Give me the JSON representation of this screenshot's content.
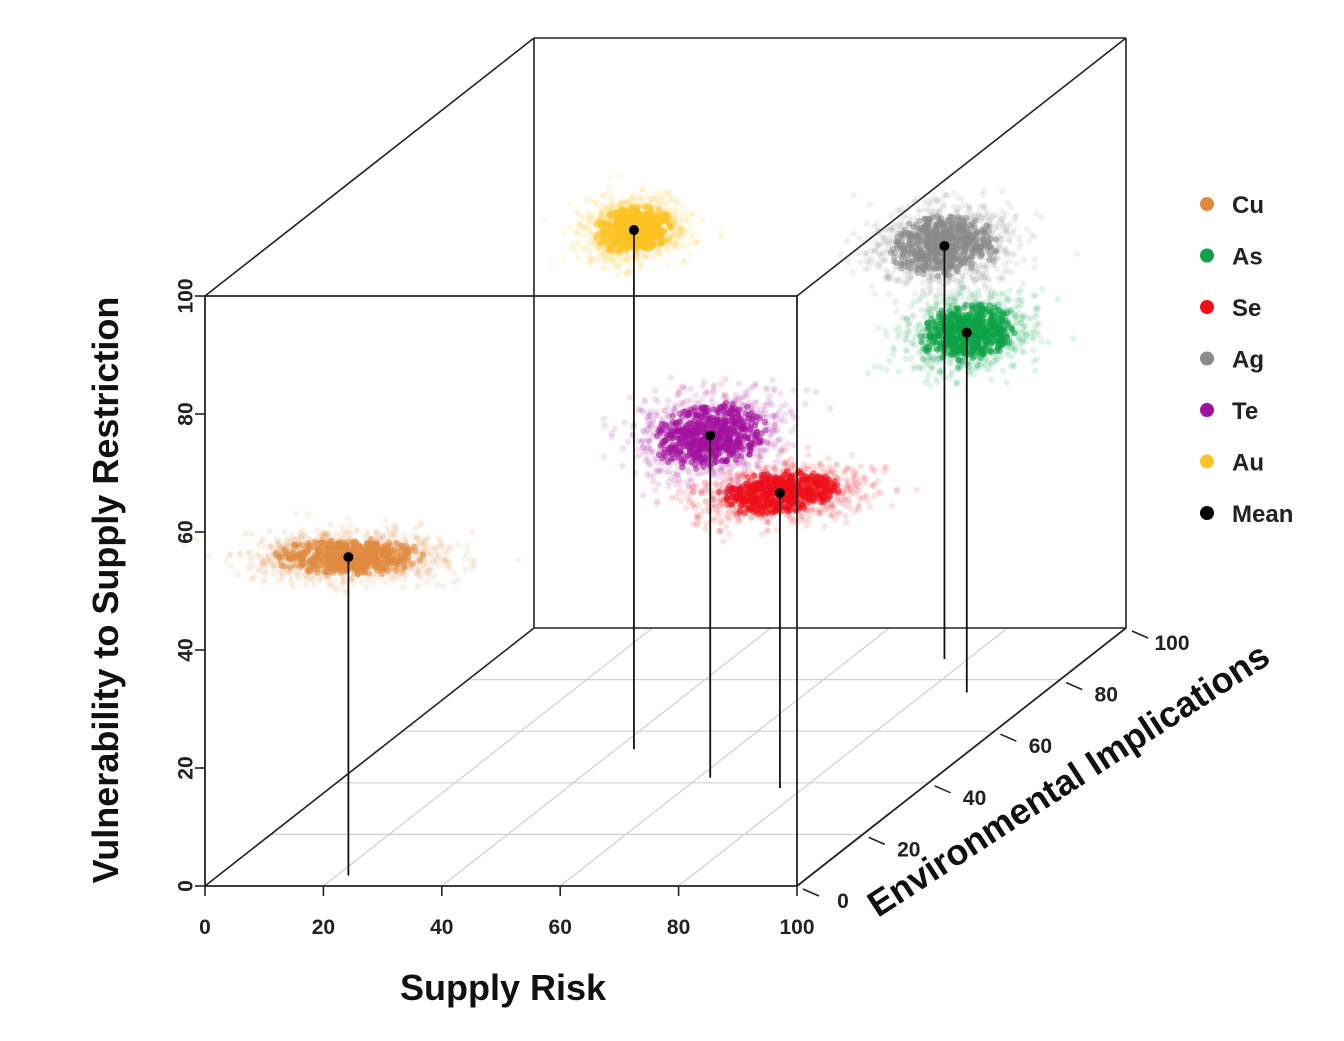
{
  "chart_data": {
    "type": "scatter3d",
    "axes": {
      "x": {
        "label": "Supply Risk",
        "range": [
          0,
          100
        ],
        "ticks": [
          "0",
          "20",
          "40",
          "60",
          "80",
          "100"
        ]
      },
      "y": {
        "label": "Environmental Implications",
        "range": [
          0,
          100
        ],
        "ticks": [
          "0",
          "20",
          "40",
          "60",
          "80",
          "100"
        ]
      },
      "z": {
        "label": "Vulnerability to Supply Restriction",
        "range": [
          0,
          100
        ],
        "ticks": [
          "0",
          "20",
          "40",
          "60",
          "80",
          "100"
        ]
      }
    },
    "series": [
      {
        "name": "Cu",
        "color": "#e08a40",
        "mean": {
          "x": 22,
          "y": 4,
          "z": 54
        },
        "spread": {
          "x": 10,
          "y": 1.5,
          "z": 2.5
        }
      },
      {
        "name": "As",
        "color": "#0ca246",
        "mean": {
          "x": 87,
          "y": 75,
          "z": 61
        },
        "spread": {
          "x": 6,
          "y": 4,
          "z": 3.5
        }
      },
      {
        "name": "Se",
        "color": "#ee0f1a",
        "mean": {
          "x": 76,
          "y": 38,
          "z": 50
        },
        "spread": {
          "x": 8,
          "y": 5,
          "z": 2
        }
      },
      {
        "name": "Ag",
        "color": "#8a8a8a",
        "mean": {
          "x": 76,
          "y": 88,
          "z": 70
        },
        "spread": {
          "x": 7,
          "y": 4,
          "z": 4
        }
      },
      {
        "name": "Te",
        "color": "#a4109e",
        "mean": {
          "x": 62,
          "y": 42,
          "z": 58
        },
        "spread": {
          "x": 7,
          "y": 5,
          "z": 4
        }
      },
      {
        "name": "Au",
        "color": "#fcc324",
        "mean": {
          "x": 43,
          "y": 53,
          "z": 88
        },
        "spread": {
          "x": 5,
          "y": 3,
          "z": 3
        }
      }
    ],
    "mean_marker": {
      "name": "Mean",
      "color": "#000000"
    },
    "legend": {
      "position": "right",
      "items": [
        {
          "label": "Cu",
          "color": "#e08a40"
        },
        {
          "label": "As",
          "color": "#0ca246"
        },
        {
          "label": "Se",
          "color": "#ee0f1a"
        },
        {
          "label": "Ag",
          "color": "#8a8a8a"
        },
        {
          "label": "Te",
          "color": "#a4109e"
        },
        {
          "label": "Au",
          "color": "#fcc324"
        },
        {
          "label": "Mean",
          "color": "#000000"
        }
      ]
    },
    "grid": true
  }
}
